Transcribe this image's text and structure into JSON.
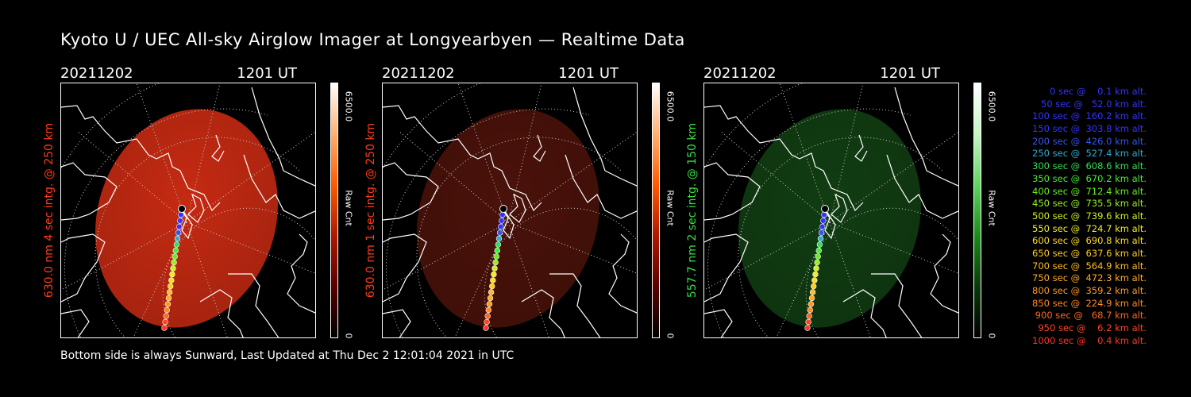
{
  "title": "Kyoto U / UEC All-sky Airglow Imager at Longyearbyen — Realtime Data",
  "footer": "Bottom side is always Sunward, Last Updated at Thu Dec  2 12:01:04 2021 in UTC",
  "panels": [
    {
      "date": "20211202",
      "time": "1201 UT",
      "ylabel": "630.0 nm 4 sec intg. @ 250 km",
      "ylabel_color": "#ff3a1a",
      "cbar_max": "6500.0",
      "cbar_min": "0",
      "cbar_unit": "Raw Cnt",
      "cbar_gradient": [
        "#000000",
        "#5a0000",
        "#b01800",
        "#ff5a00",
        "#ffb070",
        "#ffffff"
      ],
      "image_fill": "#c52a12",
      "image_brightness": 1.0
    },
    {
      "date": "20211202",
      "time": "1201 UT",
      "ylabel": "630.0 nm 1 sec intg. @ 250 km",
      "ylabel_color": "#ff3a1a",
      "cbar_max": "6500.0",
      "cbar_min": "0",
      "cbar_unit": "Raw Cnt",
      "cbar_gradient": [
        "#000000",
        "#5a0000",
        "#b01800",
        "#ff5a00",
        "#ffb070",
        "#ffffff"
      ],
      "image_fill": "#4a120a",
      "image_brightness": 0.45
    },
    {
      "date": "20211202",
      "time": "1201 UT",
      "ylabel": "557.7 nm 2 sec intg. @ 150 km",
      "ylabel_color": "#33e040",
      "cbar_max": "6500.0",
      "cbar_min": "0",
      "cbar_unit": "Raw Cnt",
      "cbar_gradient": [
        "#000000",
        "#0a3a0a",
        "#1b8a1b",
        "#5fd45f",
        "#c6f5c6",
        "#ffffff"
      ],
      "image_fill": "#113d12",
      "image_brightness": 0.5
    }
  ],
  "trajectory_legend": [
    {
      "text": "   0 sec @    0.1 km alt.",
      "color": "#3333ff"
    },
    {
      "text": "  50 sec @   52.0 km alt.",
      "color": "#3333ff"
    },
    {
      "text": " 100 sec @  160.2 km alt.",
      "color": "#3333ff"
    },
    {
      "text": " 150 sec @  303.8 km alt.",
      "color": "#3333ff"
    },
    {
      "text": " 200 sec @  426.0 km alt.",
      "color": "#3355ee"
    },
    {
      "text": " 250 sec @  527.4 km alt.",
      "color": "#33aacc"
    },
    {
      "text": " 300 sec @  608.6 km alt.",
      "color": "#33dd55"
    },
    {
      "text": " 350 sec @  670.2 km alt.",
      "color": "#44ee33"
    },
    {
      "text": " 400 sec @  712.4 km alt.",
      "color": "#66ee22"
    },
    {
      "text": " 450 sec @  735.5 km alt.",
      "color": "#99ee22"
    },
    {
      "text": " 500 sec @  739.6 km alt.",
      "color": "#ccee22"
    },
    {
      "text": " 550 sec @  724.7 km alt.",
      "color": "#eeee22"
    },
    {
      "text": " 600 sec @  690.8 km alt.",
      "color": "#ffdd22"
    },
    {
      "text": " 650 sec @  637.6 km alt.",
      "color": "#ffcc22"
    },
    {
      "text": " 700 sec @  564.9 km alt.",
      "color": "#ffbb22"
    },
    {
      "text": " 750 sec @  472.3 km alt.",
      "color": "#ffaa22"
    },
    {
      "text": " 800 sec @  359.2 km alt.",
      "color": "#ff9922"
    },
    {
      "text": " 850 sec @  224.9 km alt.",
      "color": "#ff8822"
    },
    {
      "text": " 900 sec @   68.7 km alt.",
      "color": "#ff6622"
    },
    {
      "text": " 950 sec @    6.2 km alt.",
      "color": "#ff4422"
    },
    {
      "text": "1000 sec @    0.4 km alt.",
      "color": "#ff3322"
    }
  ]
}
